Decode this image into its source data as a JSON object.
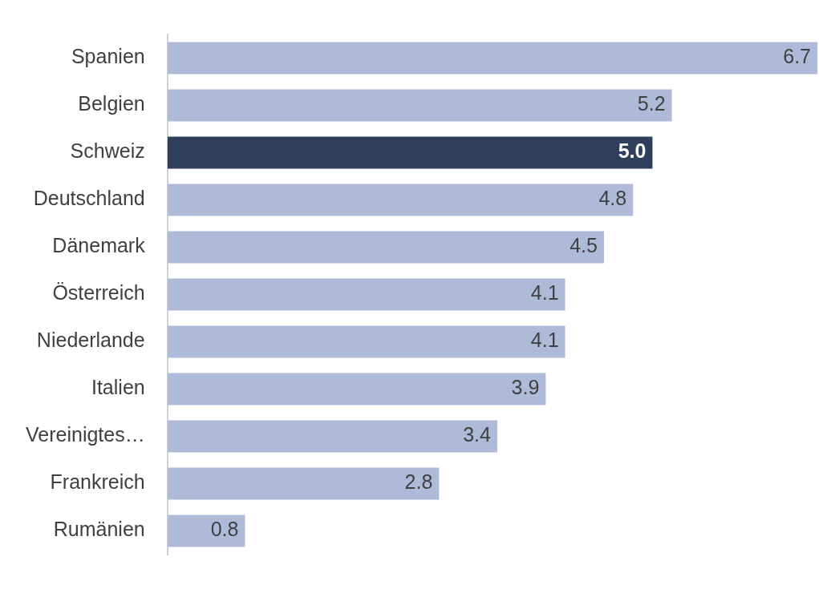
{
  "chart_data": {
    "type": "bar",
    "orientation": "horizontal",
    "categories": [
      "Spanien",
      "Belgien",
      "Schweiz",
      "Deutschland",
      "Dänemark",
      "Österreich",
      "Niederlande",
      "Italien",
      "Vereinigtes…",
      "Frankreich",
      "Rumänien"
    ],
    "values": [
      6.7,
      5.2,
      5.0,
      4.8,
      4.5,
      4.1,
      4.1,
      3.9,
      3.4,
      2.8,
      0.8
    ],
    "colors": [
      "#adbbd8",
      "#adbbd8",
      "#2e3f5c",
      "#adbbd8",
      "#adbbd8",
      "#adbbd8",
      "#adbbd8",
      "#adbbd8",
      "#adbbd8",
      "#adbbd8",
      "#adbbd8"
    ],
    "value_labels": [
      "6.7",
      "5.2",
      "5.0",
      "4.8",
      "4.5",
      "4.1",
      "4.1",
      "3.9",
      "3.4",
      "2.8",
      "0.8"
    ],
    "legend": false
  }
}
